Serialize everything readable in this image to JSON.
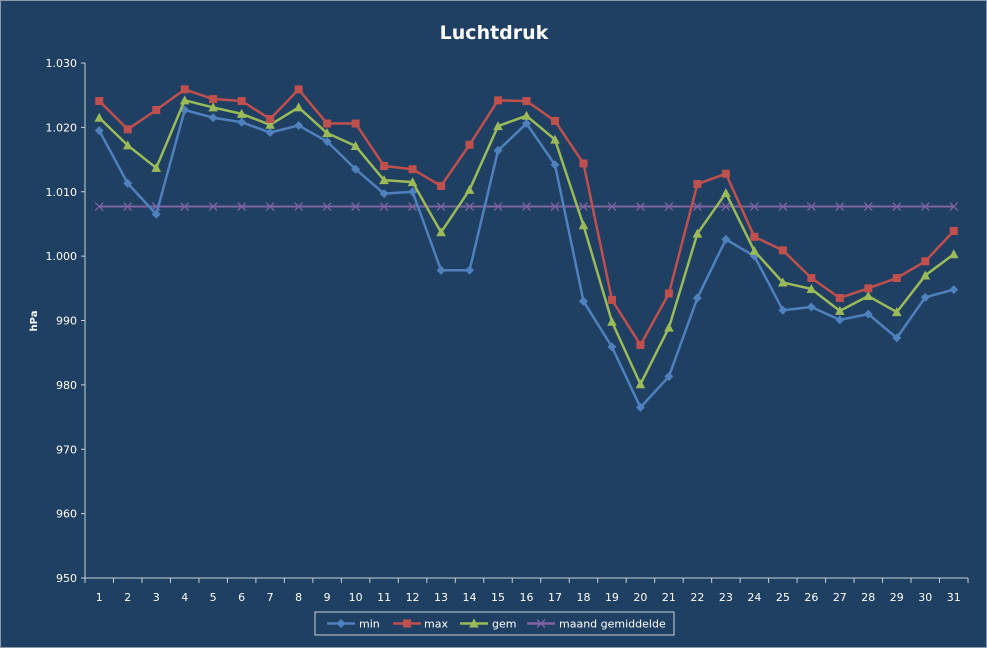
{
  "chart_data": {
    "type": "line",
    "title": "Luchtdruk",
    "xlabel": "",
    "ylabel": "hPa",
    "x": [
      "1",
      "2",
      "3",
      "4",
      "5",
      "6",
      "7",
      "8",
      "9",
      "10",
      "11",
      "12",
      "13",
      "14",
      "15",
      "16",
      "17",
      "18",
      "19",
      "20",
      "21",
      "22",
      "23",
      "24",
      "25",
      "26",
      "27",
      "28",
      "29",
      "30",
      "31"
    ],
    "ylim": [
      950,
      1030
    ],
    "yticks": [
      950,
      960,
      970,
      980,
      990,
      1000,
      1010,
      1020,
      1030
    ],
    "ytick_labels": [
      "950",
      "960",
      "970",
      "980",
      "990",
      "1.000",
      "1.010",
      "1.020",
      "1.030"
    ],
    "grid": false,
    "legend": "bottom",
    "series": [
      {
        "name": "min",
        "color": "#4f81bd",
        "marker": "diamond",
        "values": [
          1019.5,
          1011.3,
          1006.5,
          1022.7,
          1021.5,
          1020.8,
          1019.2,
          1020.3,
          1017.8,
          1013.5,
          1009.7,
          1010.0,
          997.8,
          997.8,
          1016.4,
          1020.6,
          1014.2,
          993.0,
          985.9,
          976.5,
          981.3,
          993.5,
          1002.6,
          1000.0,
          991.6,
          992.1,
          990.1,
          991.0,
          987.3,
          993.6,
          994.8
        ]
      },
      {
        "name": "max",
        "color": "#c0504d",
        "marker": "square",
        "values": [
          1024.1,
          1019.7,
          1022.7,
          1025.9,
          1024.4,
          1024.1,
          1021.3,
          1025.9,
          1020.6,
          1020.6,
          1014.0,
          1013.5,
          1010.9,
          1017.3,
          1024.2,
          1024.1,
          1021.0,
          1014.4,
          993.2,
          986.2,
          994.2,
          1011.2,
          1012.8,
          1003.0,
          1000.9,
          996.6,
          993.5,
          995.0,
          996.6,
          999.2,
          1003.9
        ]
      },
      {
        "name": "gem",
        "color": "#9bbb59",
        "marker": "triangle",
        "values": [
          1021.5,
          1017.2,
          1013.7,
          1024.2,
          1023.1,
          1022.1,
          1020.4,
          1023.1,
          1019.1,
          1017.1,
          1011.8,
          1011.5,
          1003.7,
          1010.3,
          1020.2,
          1021.8,
          1018.1,
          1004.8,
          989.8,
          980.1,
          988.9,
          1003.5,
          1009.8,
          1000.8,
          995.9,
          994.9,
          991.5,
          993.8,
          991.3,
          997.0,
          1000.3
        ]
      },
      {
        "name": "maand gemiddelde",
        "color": "#8064a2",
        "marker": "x",
        "values": [
          1007.7,
          1007.7,
          1007.7,
          1007.7,
          1007.7,
          1007.7,
          1007.7,
          1007.7,
          1007.7,
          1007.7,
          1007.7,
          1007.7,
          1007.7,
          1007.7,
          1007.7,
          1007.7,
          1007.7,
          1007.7,
          1007.7,
          1007.7,
          1007.7,
          1007.7,
          1007.7,
          1007.7,
          1007.7,
          1007.7,
          1007.7,
          1007.7,
          1007.7,
          1007.7,
          1007.7
        ]
      }
    ]
  }
}
